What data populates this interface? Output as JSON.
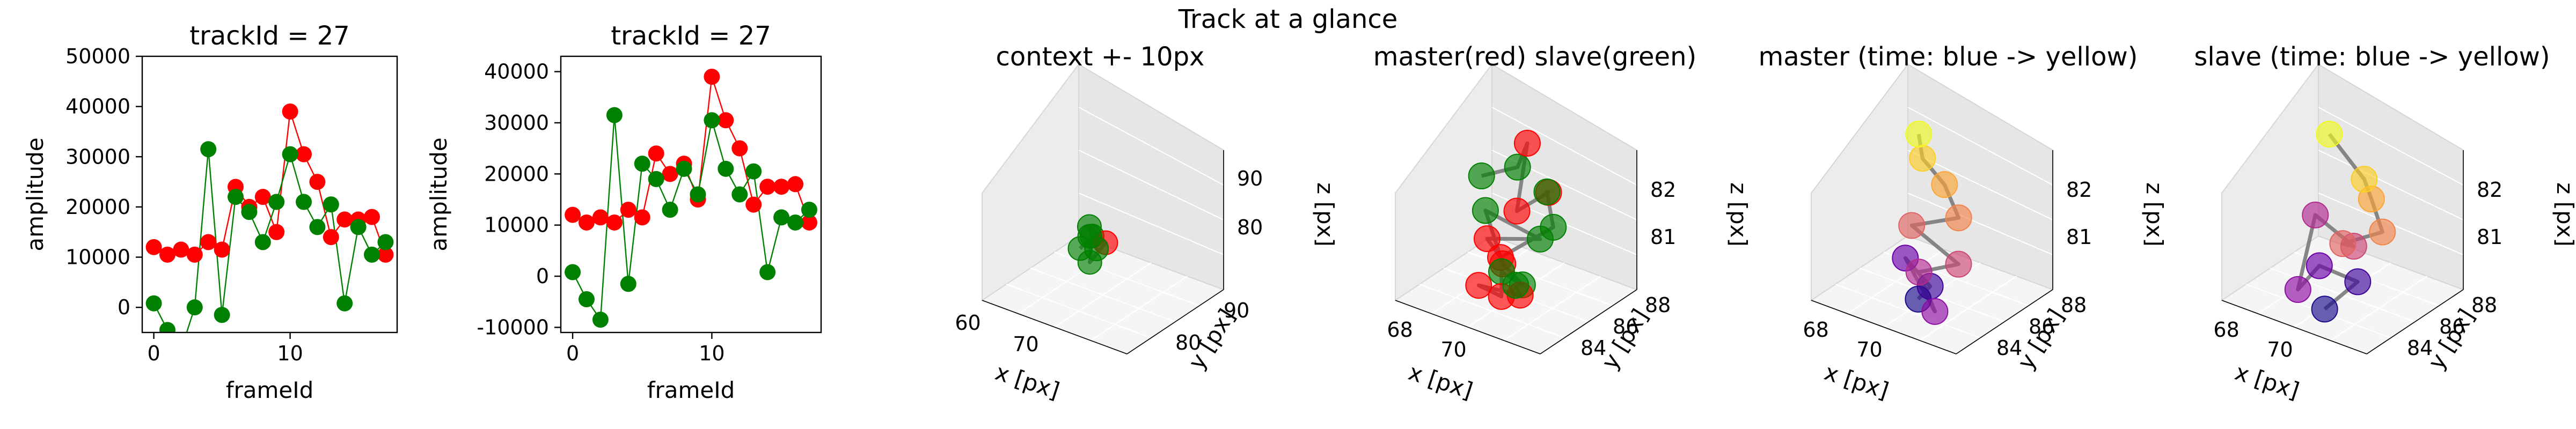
{
  "figure": {
    "suptitle": "Track at a glance"
  },
  "colors": {
    "master": "#ff0000",
    "slave": "#008000",
    "pane": "#f2f2f2",
    "trail": "#808080"
  },
  "chart_data": [
    {
      "type": "line",
      "title": "trackId = 27",
      "xlabel": "frameId",
      "ylabel": "amplitude",
      "xlim": [
        -0.85,
        17.85
      ],
      "ylim": [
        -5000,
        50000
      ],
      "xticks": [
        0,
        10
      ],
      "yticks": [
        0,
        10000,
        20000,
        30000,
        40000,
        50000
      ],
      "x": [
        0,
        1,
        2,
        3,
        4,
        5,
        6,
        7,
        8,
        9,
        10,
        11,
        12,
        13,
        14,
        15,
        16,
        17
      ],
      "series": [
        {
          "color": "#ff0000",
          "values": [
            12000,
            10500,
            11500,
            10500,
            13000,
            11500,
            24000,
            20000,
            22000,
            15000,
            39000,
            30500,
            25000,
            14000,
            17500,
            17500,
            18000,
            10500
          ]
        },
        {
          "color": "#008000",
          "values": [
            800,
            -4500,
            -8500,
            0,
            31500,
            -1500,
            22000,
            19000,
            13000,
            21000,
            30500,
            21000,
            16000,
            20500,
            800,
            16000,
            10500,
            13000
          ]
        }
      ]
    },
    {
      "type": "line",
      "title": "trackId = 27",
      "xlabel": "frameId",
      "ylabel": "amplitude",
      "xlim": [
        -0.85,
        17.85
      ],
      "ylim": [
        -11000,
        43000
      ],
      "xticks": [
        0,
        10
      ],
      "yticks": [
        -10000,
        0,
        10000,
        20000,
        30000,
        40000
      ],
      "x": [
        0,
        1,
        2,
        3,
        4,
        5,
        6,
        7,
        8,
        9,
        10,
        11,
        12,
        13,
        14,
        15,
        16,
        17
      ],
      "series": [
        {
          "color": "#ff0000",
          "values": [
            12000,
            10500,
            11500,
            10500,
            13000,
            11500,
            24000,
            20000,
            22000,
            15000,
            39000,
            30500,
            25000,
            14000,
            17500,
            17500,
            18000,
            10500
          ]
        },
        {
          "color": "#008000",
          "values": [
            800,
            -4500,
            -8500,
            31500,
            -1500,
            22000,
            19000,
            13000,
            21000,
            16000,
            30500,
            21000,
            16000,
            20500,
            800,
            11500,
            10500,
            13000
          ]
        }
      ]
    },
    {
      "type": "scatter",
      "title": "context +- 10px",
      "xlabel": "x [px]",
      "ylabel": "y [px]",
      "zlabel": "z [px]",
      "xticks": [
        "60",
        "70"
      ],
      "yticks": [
        "80",
        "90"
      ],
      "zticks": [
        "80",
        "90"
      ],
      "points": [
        {
          "x": 64.5,
          "y": 85.0,
          "z": 80.5,
          "c": "#008000"
        },
        {
          "x": 65.5,
          "y": 85.2,
          "z": 81.5,
          "c": "#008000"
        },
        {
          "x": 66.0,
          "y": 84.8,
          "z": 80.0,
          "c": "#008000"
        },
        {
          "x": 66.5,
          "y": 85.5,
          "z": 81.0,
          "c": "#ff0000"
        },
        {
          "x": 65.0,
          "y": 85.3,
          "z": 82.0,
          "c": "#008000"
        },
        {
          "x": 66.2,
          "y": 85.1,
          "z": 80.8,
          "c": "#008000"
        },
        {
          "x": 65.8,
          "y": 84.9,
          "z": 81.8,
          "c": "#008000"
        }
      ]
    },
    {
      "type": "scatter",
      "title": "master(red) slave(green)",
      "xlabel": "x [px]",
      "ylabel": "y [px]",
      "zlabel": "z [px]",
      "xticks": [
        "68",
        "70"
      ],
      "yticks": [
        "84",
        "86",
        "88"
      ],
      "zticks": [
        "81",
        "82"
      ],
      "points": [
        {
          "x": 68.6,
          "y": 86.0,
          "z": 82.3,
          "c": "#008000"
        },
        {
          "x": 69.6,
          "y": 86.2,
          "z": 82.6,
          "c": "#008000"
        },
        {
          "x": 69.4,
          "y": 86.8,
          "z": 82.8,
          "c": "#ff0000"
        },
        {
          "x": 70.1,
          "y": 85.6,
          "z": 82.1,
          "c": "#ff0000"
        },
        {
          "x": 70.7,
          "y": 86.1,
          "z": 82.4,
          "c": "#ff0000"
        },
        {
          "x": 70.3,
          "y": 86.5,
          "z": 82.2,
          "c": "#008000"
        },
        {
          "x": 71.2,
          "y": 85.7,
          "z": 82.0,
          "c": "#008000"
        },
        {
          "x": 70.0,
          "y": 85.1,
          "z": 81.4,
          "c": "#ff0000"
        },
        {
          "x": 69.3,
          "y": 85.4,
          "z": 81.5,
          "c": "#ff0000"
        },
        {
          "x": 70.6,
          "y": 85.9,
          "z": 81.6,
          "c": "#008000"
        },
        {
          "x": 68.9,
          "y": 85.8,
          "z": 81.8,
          "c": "#008000"
        },
        {
          "x": 69.9,
          "y": 85.3,
          "z": 81.2,
          "c": "#ff0000"
        },
        {
          "x": 70.8,
          "y": 85.0,
          "z": 81.1,
          "c": "#008000"
        },
        {
          "x": 69.6,
          "y": 85.6,
          "z": 80.9,
          "c": "#008000"
        },
        {
          "x": 70.2,
          "y": 84.9,
          "z": 80.8,
          "c": "#ff0000"
        },
        {
          "x": 69.2,
          "y": 85.2,
          "z": 80.7,
          "c": "#ff0000"
        },
        {
          "x": 70.9,
          "y": 84.8,
          "z": 81.0,
          "c": "#ff0000"
        },
        {
          "x": 69.8,
          "y": 85.9,
          "z": 80.6,
          "c": "#008000"
        }
      ]
    },
    {
      "type": "scatter",
      "title": "master (time: blue -> yellow)",
      "xlabel": "x [px]",
      "ylabel": "y [px]",
      "zlabel": "z [px]",
      "xticks": [
        "68",
        "70"
      ],
      "yticks": [
        "84",
        "86",
        "88"
      ],
      "zticks": [
        "81",
        "82"
      ],
      "points": [
        {
          "x": 69.8,
          "y": 85.4,
          "z": 80.7,
          "c": "#1a0a8c"
        },
        {
          "x": 70.4,
          "y": 85.0,
          "z": 81.2,
          "c": "#3d049b"
        },
        {
          "x": 69.3,
          "y": 85.6,
          "z": 81.3,
          "c": "#6a00a8"
        },
        {
          "x": 70.6,
          "y": 84.9,
          "z": 80.8,
          "c": "#8f0da4"
        },
        {
          "x": 69.5,
          "y": 85.9,
          "z": 81.0,
          "c": "#b12a90"
        },
        {
          "x": 70.9,
          "y": 85.5,
          "z": 81.6,
          "c": "#cc4778"
        },
        {
          "x": 69.1,
          "y": 86.2,
          "z": 81.7,
          "c": "#e16462"
        },
        {
          "x": 70.2,
          "y": 86.6,
          "z": 82.0,
          "c": "#f2844b"
        },
        {
          "x": 69.6,
          "y": 86.9,
          "z": 82.4,
          "c": "#fca636"
        },
        {
          "x": 68.9,
          "y": 87.0,
          "z": 82.7,
          "c": "#fcce25"
        },
        {
          "x": 68.6,
          "y": 87.3,
          "z": 83.0,
          "c": "#f0f921"
        }
      ]
    },
    {
      "type": "scatter",
      "title": "slave (time: blue -> yellow)",
      "xlabel": "x [px]",
      "ylabel": "y [px]",
      "zlabel": "z [px]",
      "xticks": [
        "68",
        "70"
      ],
      "yticks": [
        "84",
        "86",
        "88"
      ],
      "zticks": [
        "81",
        "82"
      ],
      "points": [
        {
          "x": 70.1,
          "y": 85.0,
          "z": 80.7,
          "c": "#1a0a8c"
        },
        {
          "x": 70.8,
          "y": 85.4,
          "z": 81.3,
          "c": "#3d049b"
        },
        {
          "x": 69.5,
          "y": 85.7,
          "z": 81.2,
          "c": "#6a00a8"
        },
        {
          "x": 69.2,
          "y": 85.2,
          "z": 80.8,
          "c": "#8f0da4"
        },
        {
          "x": 69.0,
          "y": 86.3,
          "z": 81.9,
          "c": "#b12a90"
        },
        {
          "x": 70.3,
          "y": 86.0,
          "z": 81.7,
          "c": "#cc4778"
        },
        {
          "x": 69.6,
          "y": 86.6,
          "z": 81.4,
          "c": "#e16462"
        },
        {
          "x": 71.0,
          "y": 86.2,
          "z": 82.1,
          "c": "#f2844b"
        },
        {
          "x": 70.3,
          "y": 86.8,
          "z": 82.4,
          "c": "#fca636"
        },
        {
          "x": 69.9,
          "y": 87.1,
          "z": 82.6,
          "c": "#fcce25"
        },
        {
          "x": 68.7,
          "y": 87.4,
          "z": 83.1,
          "c": "#f0f921"
        }
      ]
    }
  ]
}
